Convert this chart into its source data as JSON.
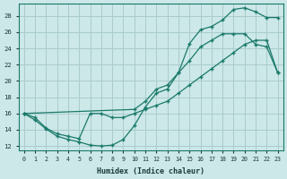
{
  "xlabel": "Humidex (Indice chaleur)",
  "bg_color": "#cce8e8",
  "grid_color": "#aacccc",
  "line_color": "#1a7a6a",
  "x_ticks": [
    0,
    1,
    2,
    3,
    4,
    5,
    6,
    7,
    8,
    9,
    10,
    11,
    12,
    13,
    14,
    15,
    16,
    17,
    18,
    19,
    20,
    21,
    22,
    23
  ],
  "y_ticks": [
    12,
    14,
    16,
    18,
    20,
    22,
    24,
    26,
    28
  ],
  "xlim": [
    -0.5,
    23.5
  ],
  "ylim": [
    11.5,
    29.5
  ],
  "line1_x": [
    0,
    1,
    2,
    3,
    4,
    5,
    6,
    7,
    8,
    9,
    10,
    11,
    12,
    13,
    14,
    15,
    16,
    17,
    18,
    19,
    20,
    21,
    22,
    23
  ],
  "line1_y": [
    16.0,
    15.2,
    14.1,
    13.2,
    12.8,
    12.5,
    12.1,
    12.0,
    12.1,
    12.8,
    14.5,
    16.8,
    18.5,
    19.0,
    21.0,
    24.6,
    26.3,
    26.7,
    27.5,
    28.8,
    29.0,
    28.5,
    27.8,
    27.8
  ],
  "line2_x": [
    0,
    10,
    11,
    12,
    13,
    14,
    15,
    16,
    17,
    18,
    19,
    20,
    21,
    22,
    23
  ],
  "line2_y": [
    16.0,
    16.5,
    17.5,
    19.0,
    19.5,
    21.0,
    22.5,
    24.2,
    25.0,
    25.8,
    25.8,
    25.8,
    24.5,
    24.2,
    21.0
  ],
  "line3_x": [
    0,
    1,
    2,
    3,
    4,
    5,
    6,
    7,
    8,
    9,
    10,
    11,
    12,
    13,
    14,
    15,
    16,
    17,
    18,
    19,
    20,
    21,
    22,
    23
  ],
  "line3_y": [
    16.0,
    15.5,
    14.2,
    13.5,
    13.2,
    12.9,
    16.0,
    16.0,
    15.5,
    15.5,
    16.0,
    16.5,
    17.0,
    17.5,
    18.5,
    19.5,
    20.5,
    21.5,
    22.5,
    23.5,
    24.5,
    25.0,
    25.0,
    21.0
  ]
}
